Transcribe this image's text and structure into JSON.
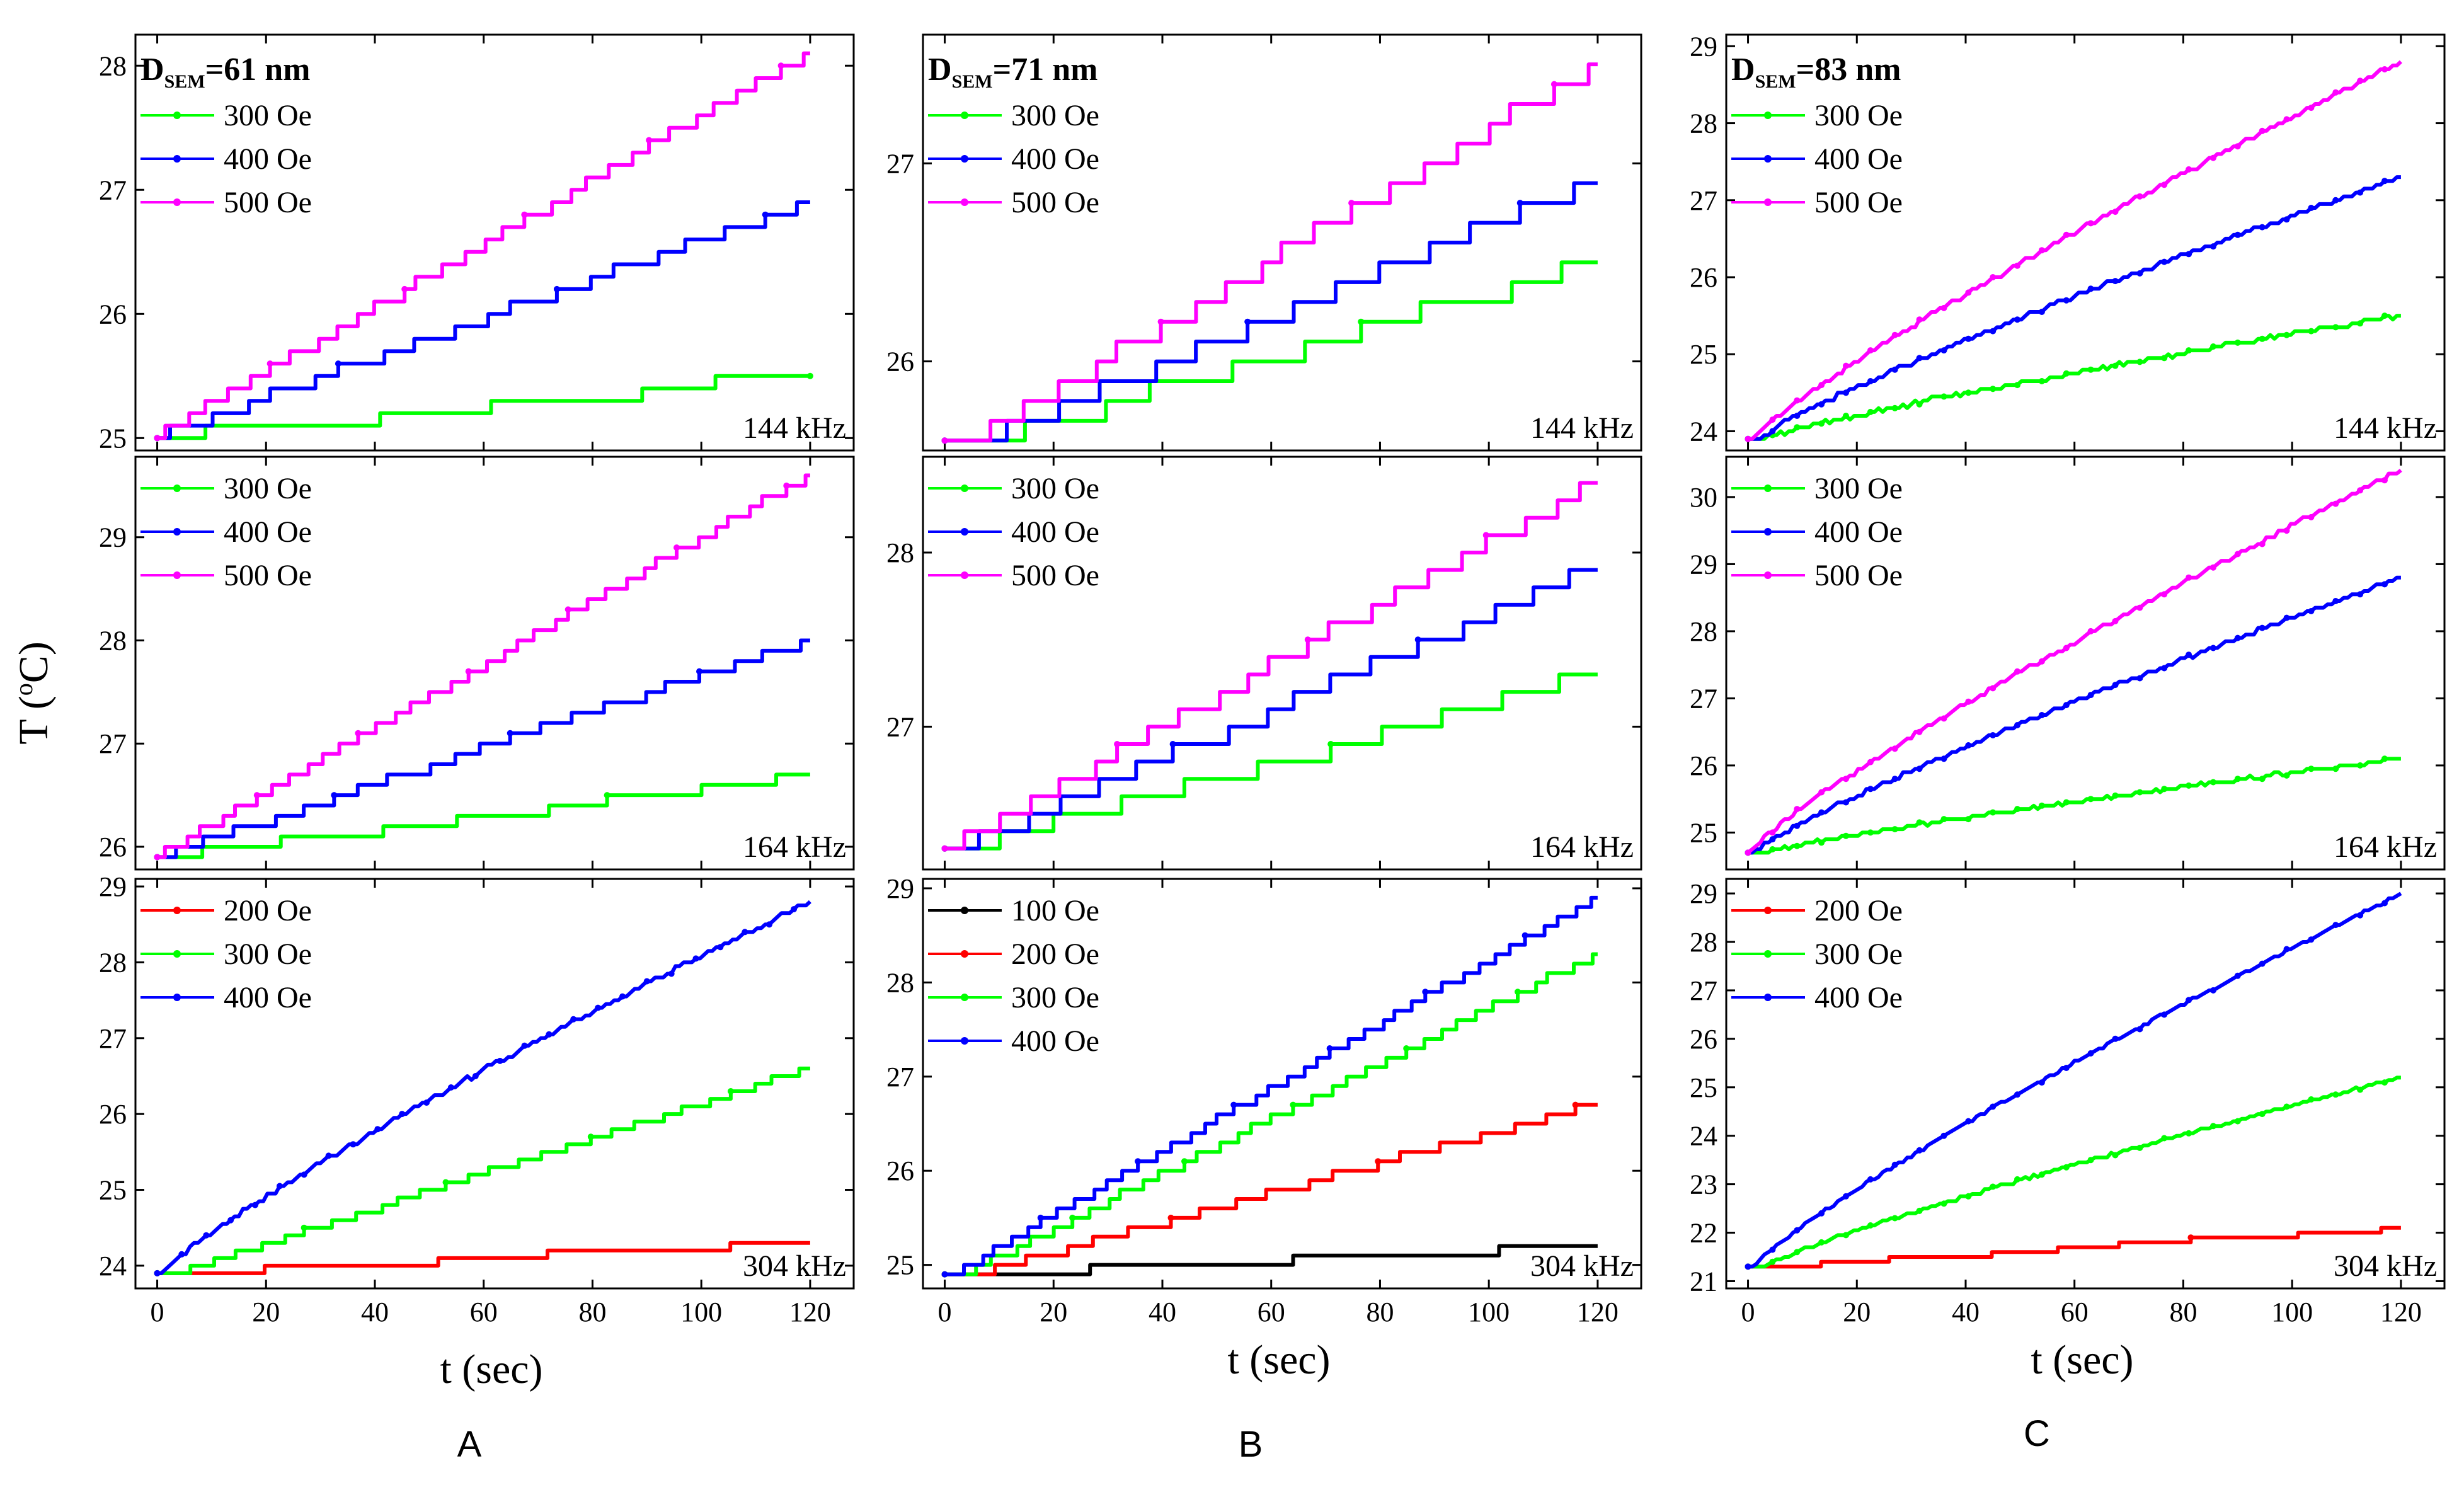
{
  "figure": {
    "ylabel_main": "T (",
    "ylabel_deg": "o",
    "ylabel_end": "C)",
    "xlabel": "t (sec)",
    "column_labels": [
      "A",
      "B",
      "C"
    ],
    "column_titles": [
      {
        "main": "D",
        "sub": "SEM",
        "rest": "=61 nm"
      },
      {
        "main": "D",
        "sub": "SEM",
        "rest": "=71 nm"
      },
      {
        "main": "D",
        "sub": "SEM",
        "rest": "=83 nm"
      }
    ],
    "colors": {
      "100 Oe": "#000000",
      "200 Oe": "#ff0000",
      "300 Oe": "#00ff00",
      "400 Oe": "#0000ff",
      "500 Oe": "#ff00ff"
    }
  },
  "chart_data": [
    {
      "type": "line",
      "panel": "A",
      "frequency": "144 kHz",
      "xlim": [
        -4,
        128
      ],
      "ylim": [
        24.9,
        28.25
      ],
      "xticks": [
        0,
        20,
        40,
        60,
        80,
        100,
        120
      ],
      "yticks": [
        25,
        26,
        27,
        28
      ],
      "series": [
        {
          "name": "300 Oe",
          "style": "step",
          "start": 25.0,
          "end": 25.5,
          "step": 0.1,
          "t0": 0
        },
        {
          "name": "400 Oe",
          "style": "step",
          "start": 25.0,
          "end": 26.9,
          "step": 0.1,
          "t0": 0
        },
        {
          "name": "500 Oe",
          "style": "step",
          "start": 25.0,
          "end": 28.1,
          "step": 0.1,
          "t0": 0
        }
      ]
    },
    {
      "type": "line",
      "panel": "B",
      "frequency": "144 kHz",
      "xlim": [
        -4,
        128
      ],
      "ylim": [
        25.55,
        27.65
      ],
      "xticks": [
        0,
        20,
        40,
        60,
        80,
        100,
        120
      ],
      "yticks": [
        26,
        27
      ],
      "series": [
        {
          "name": "300 Oe",
          "style": "step",
          "start": 25.6,
          "end": 26.5,
          "step": 0.1,
          "t0": 10
        },
        {
          "name": "400 Oe",
          "style": "step",
          "start": 25.6,
          "end": 26.9,
          "step": 0.1,
          "t0": 8
        },
        {
          "name": "500 Oe",
          "style": "step",
          "start": 25.6,
          "end": 27.5,
          "step": 0.1,
          "t0": 6
        }
      ]
    },
    {
      "type": "line",
      "panel": "C",
      "frequency": "144 kHz",
      "xlim": [
        -4,
        128
      ],
      "ylim": [
        23.75,
        29.15
      ],
      "xticks": [
        0,
        20,
        40,
        60,
        80,
        100,
        120
      ],
      "yticks": [
        24,
        25,
        26,
        27,
        28,
        29
      ],
      "series": [
        {
          "name": "300 Oe",
          "style": "smooth",
          "start": 23.9,
          "end": 25.5,
          "step": 0.1,
          "t0": 3
        },
        {
          "name": "400 Oe",
          "style": "smooth",
          "start": 23.9,
          "end": 27.3,
          "step": 0.1,
          "t0": 2
        },
        {
          "name": "500 Oe",
          "style": "smooth",
          "start": 23.9,
          "end": 28.8,
          "step": 0.1,
          "t0": 1
        }
      ]
    },
    {
      "type": "line",
      "panel": "A",
      "frequency": "164 kHz",
      "xlim": [
        -4,
        128
      ],
      "ylim": [
        25.78,
        29.78
      ],
      "xticks": [
        0,
        20,
        40,
        60,
        80,
        100,
        120
      ],
      "yticks": [
        26,
        27,
        28,
        29
      ],
      "series": [
        {
          "name": "300 Oe",
          "style": "step",
          "start": 25.9,
          "end": 26.7,
          "step": 0.1,
          "t0": 2
        },
        {
          "name": "400 Oe",
          "style": "step",
          "start": 25.9,
          "end": 28.0,
          "step": 0.1,
          "t0": 1
        },
        {
          "name": "500 Oe",
          "style": "step",
          "start": 25.9,
          "end": 29.6,
          "step": 0.1,
          "t0": 0
        }
      ]
    },
    {
      "type": "line",
      "panel": "B",
      "frequency": "164 kHz",
      "xlim": [
        -4,
        128
      ],
      "ylim": [
        26.18,
        28.55
      ],
      "xticks": [
        0,
        20,
        40,
        60,
        80,
        100,
        120
      ],
      "yticks": [
        27,
        28
      ],
      "series": [
        {
          "name": "300 Oe",
          "style": "step",
          "start": 26.3,
          "end": 27.3,
          "step": 0.1,
          "t0": 5
        },
        {
          "name": "400 Oe",
          "style": "step",
          "start": 26.3,
          "end": 27.9,
          "step": 0.1,
          "t0": 3
        },
        {
          "name": "500 Oe",
          "style": "step",
          "start": 26.3,
          "end": 28.4,
          "step": 0.1,
          "t0": 1
        }
      ]
    },
    {
      "type": "line",
      "panel": "C",
      "frequency": "164 kHz",
      "xlim": [
        -4,
        128
      ],
      "ylim": [
        24.45,
        30.6
      ],
      "xticks": [
        0,
        20,
        40,
        60,
        80,
        100,
        120
      ],
      "yticks": [
        25,
        26,
        27,
        28,
        29,
        30
      ],
      "series": [
        {
          "name": "300 Oe",
          "style": "smooth",
          "start": 24.7,
          "end": 26.1,
          "step": 0.1,
          "t0": 3
        },
        {
          "name": "400 Oe",
          "style": "smooth",
          "start": 24.7,
          "end": 28.8,
          "step": 0.1,
          "t0": 1
        },
        {
          "name": "500 Oe",
          "style": "smooth",
          "start": 24.7,
          "end": 30.4,
          "step": 0.1,
          "t0": 0
        }
      ]
    },
    {
      "type": "line",
      "panel": "A",
      "frequency": "304 kHz",
      "xlim": [
        -4,
        128
      ],
      "ylim": [
        23.7,
        29.1
      ],
      "xticks": [
        0,
        20,
        40,
        60,
        80,
        100,
        120
      ],
      "yticks": [
        24,
        25,
        26,
        27,
        28,
        29
      ],
      "series": [
        {
          "name": "200 Oe",
          "style": "step",
          "start": 23.9,
          "end": 24.3,
          "step": 0.1,
          "t0": 6
        },
        {
          "name": "300 Oe",
          "style": "step",
          "start": 23.9,
          "end": 26.6,
          "step": 0.1,
          "t0": 4
        },
        {
          "name": "400 Oe",
          "style": "smooth",
          "start": 23.9,
          "end": 28.8,
          "step": 0.1,
          "t0": 1
        }
      ]
    },
    {
      "type": "line",
      "panel": "B",
      "frequency": "304 kHz",
      "xlim": [
        -4,
        128
      ],
      "ylim": [
        24.75,
        29.1
      ],
      "xticks": [
        0,
        20,
        40,
        60,
        80,
        100,
        120
      ],
      "yticks": [
        25,
        26,
        27,
        28,
        29
      ],
      "series": [
        {
          "name": "100 Oe",
          "style": "step",
          "start": 24.9,
          "end": 25.2,
          "step": 0.1,
          "t0": 8
        },
        {
          "name": "200 Oe",
          "style": "step",
          "start": 24.9,
          "end": 26.7,
          "step": 0.1,
          "t0": 6
        },
        {
          "name": "300 Oe",
          "style": "step",
          "start": 24.9,
          "end": 28.3,
          "step": 0.1,
          "t0": 4
        },
        {
          "name": "400 Oe",
          "style": "step",
          "start": 24.9,
          "end": 28.9,
          "step": 0.1,
          "t0": 2
        }
      ]
    },
    {
      "type": "line",
      "panel": "C",
      "frequency": "304 kHz",
      "xlim": [
        -4,
        128
      ],
      "ylim": [
        20.85,
        29.3
      ],
      "xticks": [
        0,
        20,
        40,
        60,
        80,
        100,
        120
      ],
      "yticks": [
        21,
        22,
        23,
        24,
        25,
        26,
        27,
        28,
        29
      ],
      "series": [
        {
          "name": "200 Oe",
          "style": "step",
          "start": 21.3,
          "end": 22.1,
          "step": 0.1,
          "t0": 6
        },
        {
          "name": "300 Oe",
          "style": "smooth",
          "start": 21.3,
          "end": 25.2,
          "step": 0.1,
          "t0": 3
        },
        {
          "name": "400 Oe",
          "style": "smooth",
          "start": 21.3,
          "end": 29.0,
          "step": 0.1,
          "t0": 1
        }
      ]
    }
  ]
}
